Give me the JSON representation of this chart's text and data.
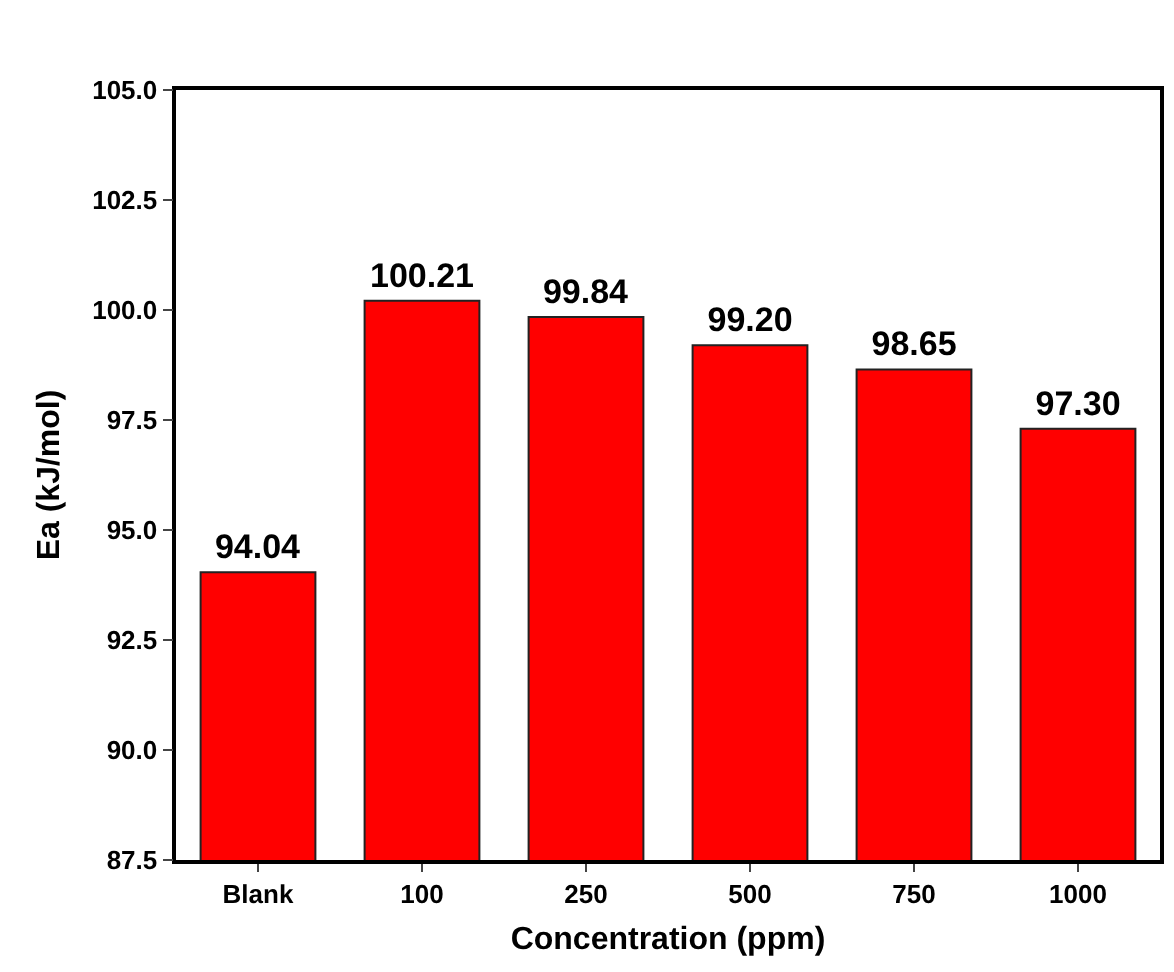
{
  "chart_data": {
    "type": "bar",
    "xlabel": "Concentration (ppm)",
    "ylabel": "Ea (kJ/mol)",
    "categories": [
      "Blank",
      "100",
      "250",
      "500",
      "750",
      "1000"
    ],
    "values": [
      94.04,
      100.21,
      99.84,
      99.2,
      98.65,
      97.3
    ],
    "value_labels": [
      "94.04",
      "100.21",
      "99.84",
      "99.20",
      "98.65",
      "97.30"
    ],
    "color": "#ff0000",
    "ylim": [
      87.5,
      105
    ],
    "yticks": [
      87.5,
      {
        "value": 90,
        "label": "90.0"
      },
      92.5,
      {
        "value": 95,
        "label": "95.0"
      },
      97.5,
      {
        "value": 100,
        "label": "100.0"
      },
      102.5,
      {
        "value": 105,
        "label": "105.0"
      }
    ],
    "grid": false,
    "legend": false
  }
}
